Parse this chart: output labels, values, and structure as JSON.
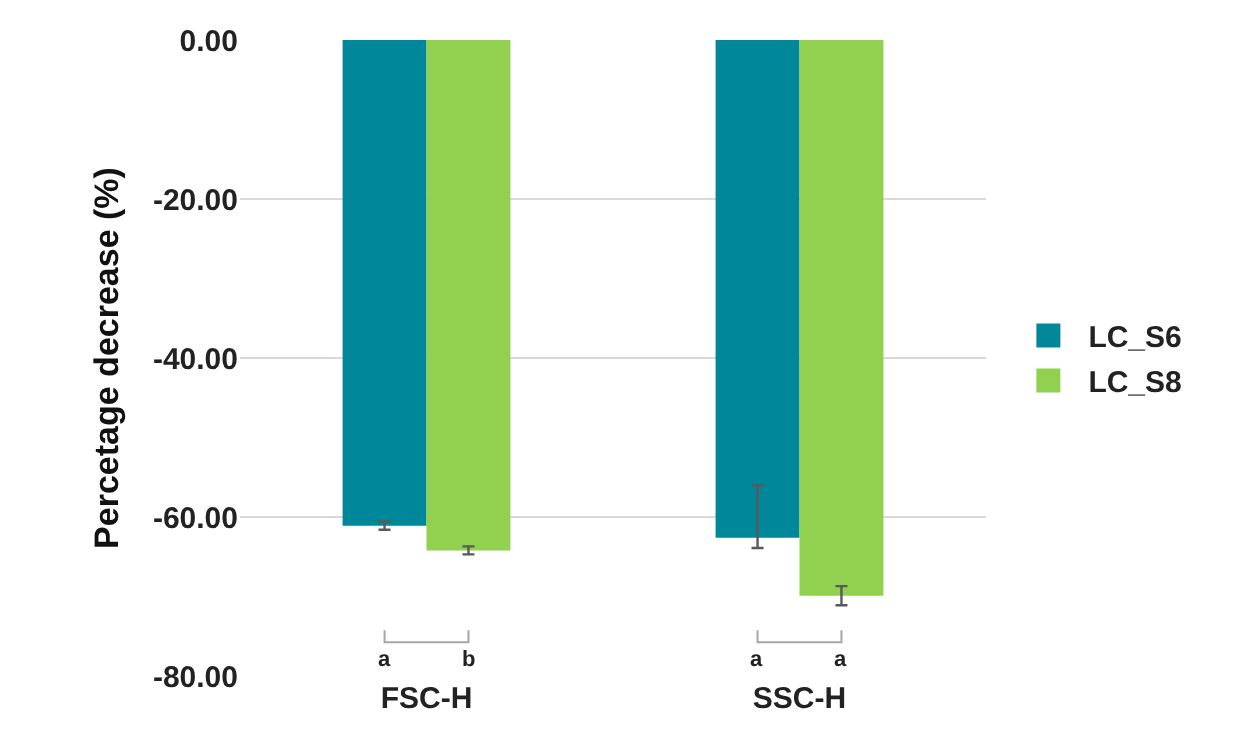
{
  "chart_data": {
    "type": "bar",
    "ylabel": "Percetage decrease (%)",
    "categories": [
      "FSC-H",
      "SSC-H"
    ],
    "series": [
      {
        "name": "LC_S6",
        "color": "#00889a",
        "values": [
          -61.1,
          -62.6
        ],
        "errors": [
          0.5,
          [
            -63.9,
            -56.0
          ]
        ]
      },
      {
        "name": "LC_S8",
        "color": "#92d050",
        "values": [
          -64.2,
          -69.9
        ],
        "errors": [
          0.5,
          1.2
        ]
      }
    ],
    "ylim": [
      -80,
      0
    ],
    "yticks": [
      {
        "value": 0,
        "label": "0.00"
      },
      {
        "value": -20,
        "label": "-20.00"
      },
      {
        "value": -40,
        "label": "-40.00"
      },
      {
        "value": -60,
        "label": "-60.00"
      },
      {
        "value": -80,
        "label": "-80.00"
      }
    ],
    "grid": "y",
    "legend": "right",
    "annotations": [
      "a",
      "b",
      "a",
      "a"
    ]
  }
}
